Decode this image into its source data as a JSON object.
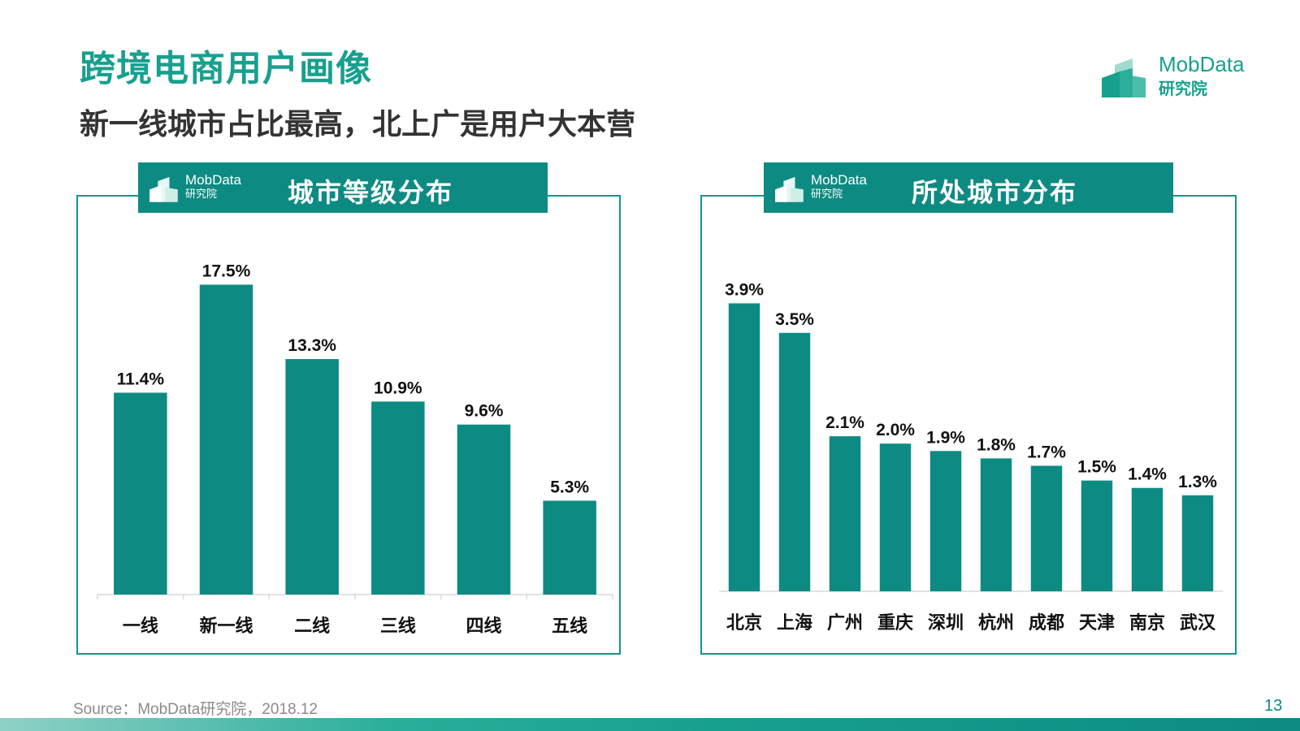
{
  "header": {
    "title": "跨境电商用户画像",
    "subtitle": "新一线城市占比最高，北上广是用户大本营"
  },
  "brand": {
    "name_en": "MobData",
    "name_cn": "研究院"
  },
  "colors": {
    "accent": "#18a08f",
    "bar": "#0d8b82",
    "header_bg": "#0d8b82",
    "border": "#16958a"
  },
  "chart_data": [
    {
      "type": "bar",
      "title": "城市等级分布",
      "categories": [
        "一线",
        "新一线",
        "二线",
        "三线",
        "四线",
        "五线"
      ],
      "values": [
        11.4,
        17.5,
        13.3,
        10.9,
        9.6,
        5.3
      ],
      "value_labels": [
        "11.4%",
        "17.5%",
        "13.3%",
        "10.9%",
        "9.6%",
        "5.3%"
      ],
      "xlabel": "",
      "ylabel": "",
      "ylim": [
        0,
        20
      ],
      "grid": false,
      "legend": "none"
    },
    {
      "type": "bar",
      "title": "所处城市分布",
      "categories": [
        "北京",
        "上海",
        "广州",
        "重庆",
        "深圳",
        "杭州",
        "成都",
        "天津",
        "南京",
        "武汉"
      ],
      "values": [
        3.9,
        3.5,
        2.1,
        2.0,
        1.9,
        1.8,
        1.7,
        1.5,
        1.4,
        1.3
      ],
      "value_labels": [
        "3.9%",
        "3.5%",
        "2.1%",
        "2.0%",
        "1.9%",
        "1.8%",
        "1.7%",
        "1.5%",
        "1.4%",
        "1.3%"
      ],
      "xlabel": "",
      "ylabel": "",
      "ylim": [
        0,
        4.4
      ],
      "grid": false,
      "legend": "none"
    }
  ],
  "footer": {
    "source": "Source：MobData研究院，2018.12",
    "page": "13"
  }
}
